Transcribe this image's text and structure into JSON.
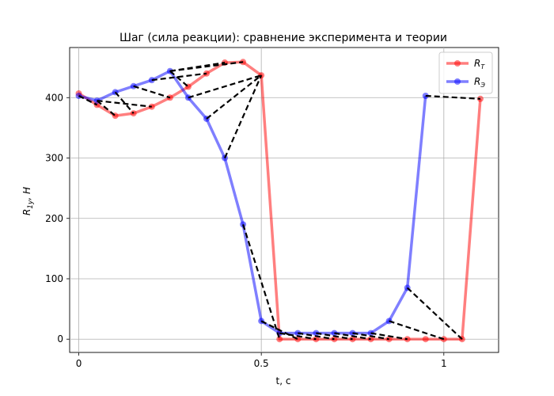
{
  "chart_data": {
    "type": "line",
    "title": "Шаг (сила реакции): сравнение эксперимента и теории",
    "xlabel": "t, с",
    "ylabel_main": "R",
    "ylabel_sub": "1y",
    "ylabel_unit": ", H",
    "xlim": [
      -0.025,
      1.15
    ],
    "ylim": [
      -22,
      483
    ],
    "x_ticks": [
      0,
      0.5,
      1
    ],
    "x_tick_labels": [
      "0",
      "0.5",
      "1"
    ],
    "y_ticks": [
      0,
      100,
      200,
      300,
      400
    ],
    "y_tick_labels": [
      "0",
      "100",
      "200",
      "300",
      "400"
    ],
    "grid": true,
    "legend_placement": "top-right",
    "series": [
      {
        "name": "R_T",
        "legend_main": "R",
        "legend_sub": "T",
        "color": "#ff0000",
        "x": [
          0,
          0.05,
          0.1,
          0.15,
          0.2,
          0.25,
          0.3,
          0.35,
          0.4,
          0.45,
          0.5,
          0.55,
          0.6,
          0.65,
          0.7,
          0.75,
          0.8,
          0.85,
          0.9,
          0.95,
          1.0,
          1.05,
          1.1
        ],
        "y": [
          407,
          388,
          370,
          374,
          385,
          400,
          418,
          440,
          458,
          459,
          437,
          0,
          0,
          0,
          0,
          0,
          0,
          0,
          0,
          0,
          0,
          0,
          398
        ]
      },
      {
        "name": "R_Э",
        "legend_main": "R",
        "legend_sub": "Э",
        "color": "#0000ff",
        "x": [
          0,
          0.05,
          0.1,
          0.15,
          0.2,
          0.25,
          0.3,
          0.35,
          0.4,
          0.45,
          0.5,
          0.55,
          0.6,
          0.65,
          0.7,
          0.75,
          0.8,
          0.85,
          0.9,
          0.95
        ],
        "y": [
          403,
          395,
          409,
          419,
          429,
          444,
          400,
          365,
          300,
          190,
          30,
          10,
          10,
          10,
          10,
          10,
          10,
          30,
          85,
          403
        ]
      }
    ],
    "connectors": [
      [
        [
          0,
          403
        ],
        [
          0.05,
          388
        ]
      ],
      [
        [
          0.05,
          395
        ],
        [
          0.1,
          370
        ]
      ],
      [
        [
          0.1,
          409
        ],
        [
          0.15,
          374
        ]
      ],
      [
        [
          0.05,
          395
        ],
        [
          0.2,
          385
        ]
      ],
      [
        [
          0.15,
          419
        ],
        [
          0.25,
          400
        ]
      ],
      [
        [
          0.25,
          444
        ],
        [
          0.3,
          418
        ]
      ],
      [
        [
          0.2,
          429
        ],
        [
          0.35,
          440
        ]
      ],
      [
        [
          0.25,
          444
        ],
        [
          0.4,
          458
        ]
      ],
      [
        [
          0.25,
          444
        ],
        [
          0.45,
          459
        ]
      ],
      [
        [
          0.3,
          400
        ],
        [
          0.5,
          437
        ]
      ],
      [
        [
          0.35,
          365
        ],
        [
          0.5,
          437
        ]
      ],
      [
        [
          0.4,
          300
        ],
        [
          0.5,
          437
        ]
      ],
      [
        [
          0.45,
          190
        ],
        [
          0.55,
          0
        ]
      ],
      [
        [
          0.5,
          30
        ],
        [
          0.6,
          0
        ]
      ],
      [
        [
          0.55,
          10
        ],
        [
          0.65,
          0
        ]
      ],
      [
        [
          0.6,
          10
        ],
        [
          0.7,
          0
        ]
      ],
      [
        [
          0.65,
          10
        ],
        [
          0.75,
          0
        ]
      ],
      [
        [
          0.7,
          10
        ],
        [
          0.8,
          0
        ]
      ],
      [
        [
          0.75,
          10
        ],
        [
          0.85,
          0
        ]
      ],
      [
        [
          0.8,
          10
        ],
        [
          0.9,
          0
        ]
      ],
      [
        [
          0.85,
          30
        ],
        [
          1.0,
          0
        ]
      ],
      [
        [
          0.9,
          85
        ],
        [
          1.05,
          0
        ]
      ],
      [
        [
          0.95,
          403
        ],
        [
          1.1,
          398
        ]
      ]
    ]
  }
}
